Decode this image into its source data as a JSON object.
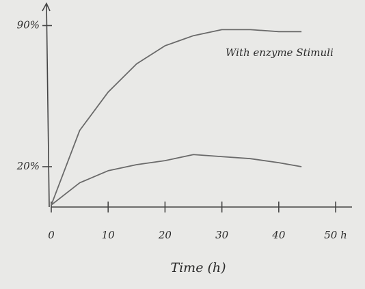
{
  "chart_data": {
    "type": "line",
    "x": [
      0,
      5,
      10,
      15,
      20,
      25,
      30,
      35,
      40,
      44
    ],
    "series": [
      {
        "name": "With enzyme Stimuli",
        "color": "#6a6a6a",
        "values": [
          1,
          38,
          57,
          71,
          80,
          85,
          88,
          88,
          87,
          87
        ]
      },
      {
        "color": "#6a6a6a",
        "values": [
          1,
          12,
          18,
          21,
          23,
          26,
          25,
          24,
          22,
          20
        ]
      }
    ],
    "x_label": "Time (h)",
    "xlim": [
      0,
      53
    ],
    "xticks": [
      0,
      10,
      20,
      30,
      40,
      {
        "value": 50,
        "label": "50 h"
      }
    ],
    "ylim": [
      0,
      101
    ],
    "yticks": [
      {
        "value": 20,
        "label": "20%"
      },
      {
        "value": 90,
        "label": "90%"
      }
    ]
  }
}
